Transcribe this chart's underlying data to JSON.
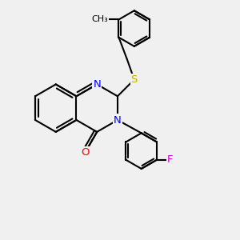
{
  "bg_color": "#f0f0f0",
  "bond_color": "#000000",
  "bond_width": 1.5,
  "atom_colors": {
    "N": "#0000ff",
    "O": "#ff0000",
    "S": "#ccaa00",
    "F": "#cc00cc",
    "C": "#000000"
  },
  "font_size": 9.5
}
